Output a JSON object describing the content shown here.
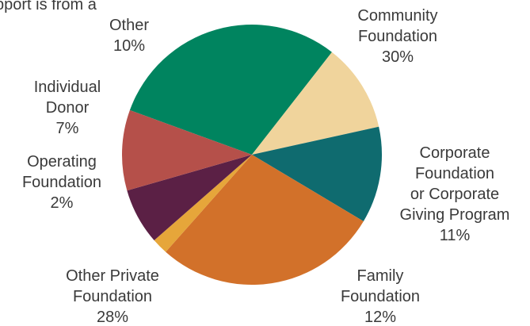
{
  "chart_data": {
    "type": "pie",
    "title_fragment": "pport is from a",
    "slices": [
      {
        "label": [
          "Community",
          "Foundation"
        ],
        "value": 30,
        "value_label": "30%",
        "color": "#00845f"
      },
      {
        "label": [
          "Corporate",
          "Foundation",
          "or Corporate",
          "Giving Program"
        ],
        "value": 11,
        "value_label": "11%",
        "color": "#f0d49c"
      },
      {
        "label": [
          "Family",
          "Foundation"
        ],
        "value": 12,
        "value_label": "12%",
        "color": "#0f6b6f"
      },
      {
        "label": [
          "Other Private",
          "Foundation"
        ],
        "value": 28,
        "value_label": "28%",
        "color": "#d2712a"
      },
      {
        "label": [
          "Operating",
          "Foundation"
        ],
        "value": 2,
        "value_label": "2%",
        "color": "#e6a63a"
      },
      {
        "label": [
          "Individual",
          "Donor"
        ],
        "value": 7,
        "value_label": "7%",
        "color": "#5b2045"
      },
      {
        "label": [
          "Other"
        ],
        "value": 10,
        "value_label": "10%",
        "color": "#b5504a"
      }
    ]
  }
}
